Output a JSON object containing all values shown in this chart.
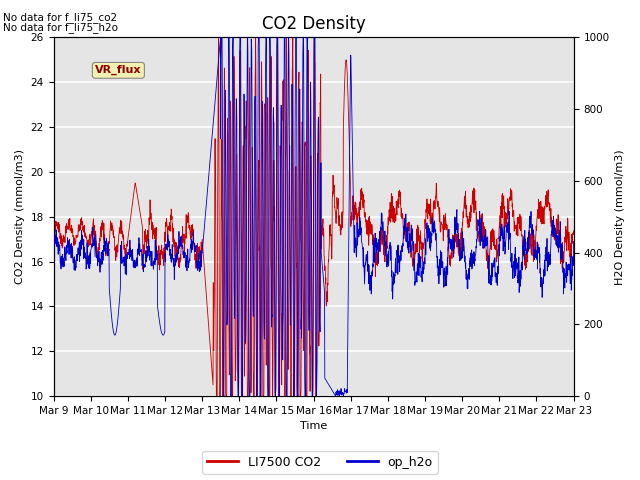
{
  "title": "CO2 Density",
  "xlabel": "Time",
  "ylabel_left": "CO2 Density (mmol/m3)",
  "ylabel_right": "H2O Density (mmol/m3)",
  "ylim_left": [
    10,
    26
  ],
  "ylim_right": [
    0,
    1000
  ],
  "yticks_left": [
    10,
    12,
    14,
    16,
    18,
    20,
    22,
    24,
    26
  ],
  "yticks_right": [
    0,
    200,
    400,
    600,
    800,
    1000
  ],
  "annotation_text1": "No data for f_li75_co2",
  "annotation_text2": "No data for f_li75_h2o",
  "vr_flux_label": "VR_flux",
  "legend_labels": [
    "LI7500 CO2",
    "op_h2o"
  ],
  "co2_color": "#cc0000",
  "h2o_color": "#0000cc",
  "bg_color": "#e5e5e5",
  "grid_color": "#ffffff",
  "title_fontsize": 12,
  "label_fontsize": 8,
  "tick_fontsize": 7.5
}
